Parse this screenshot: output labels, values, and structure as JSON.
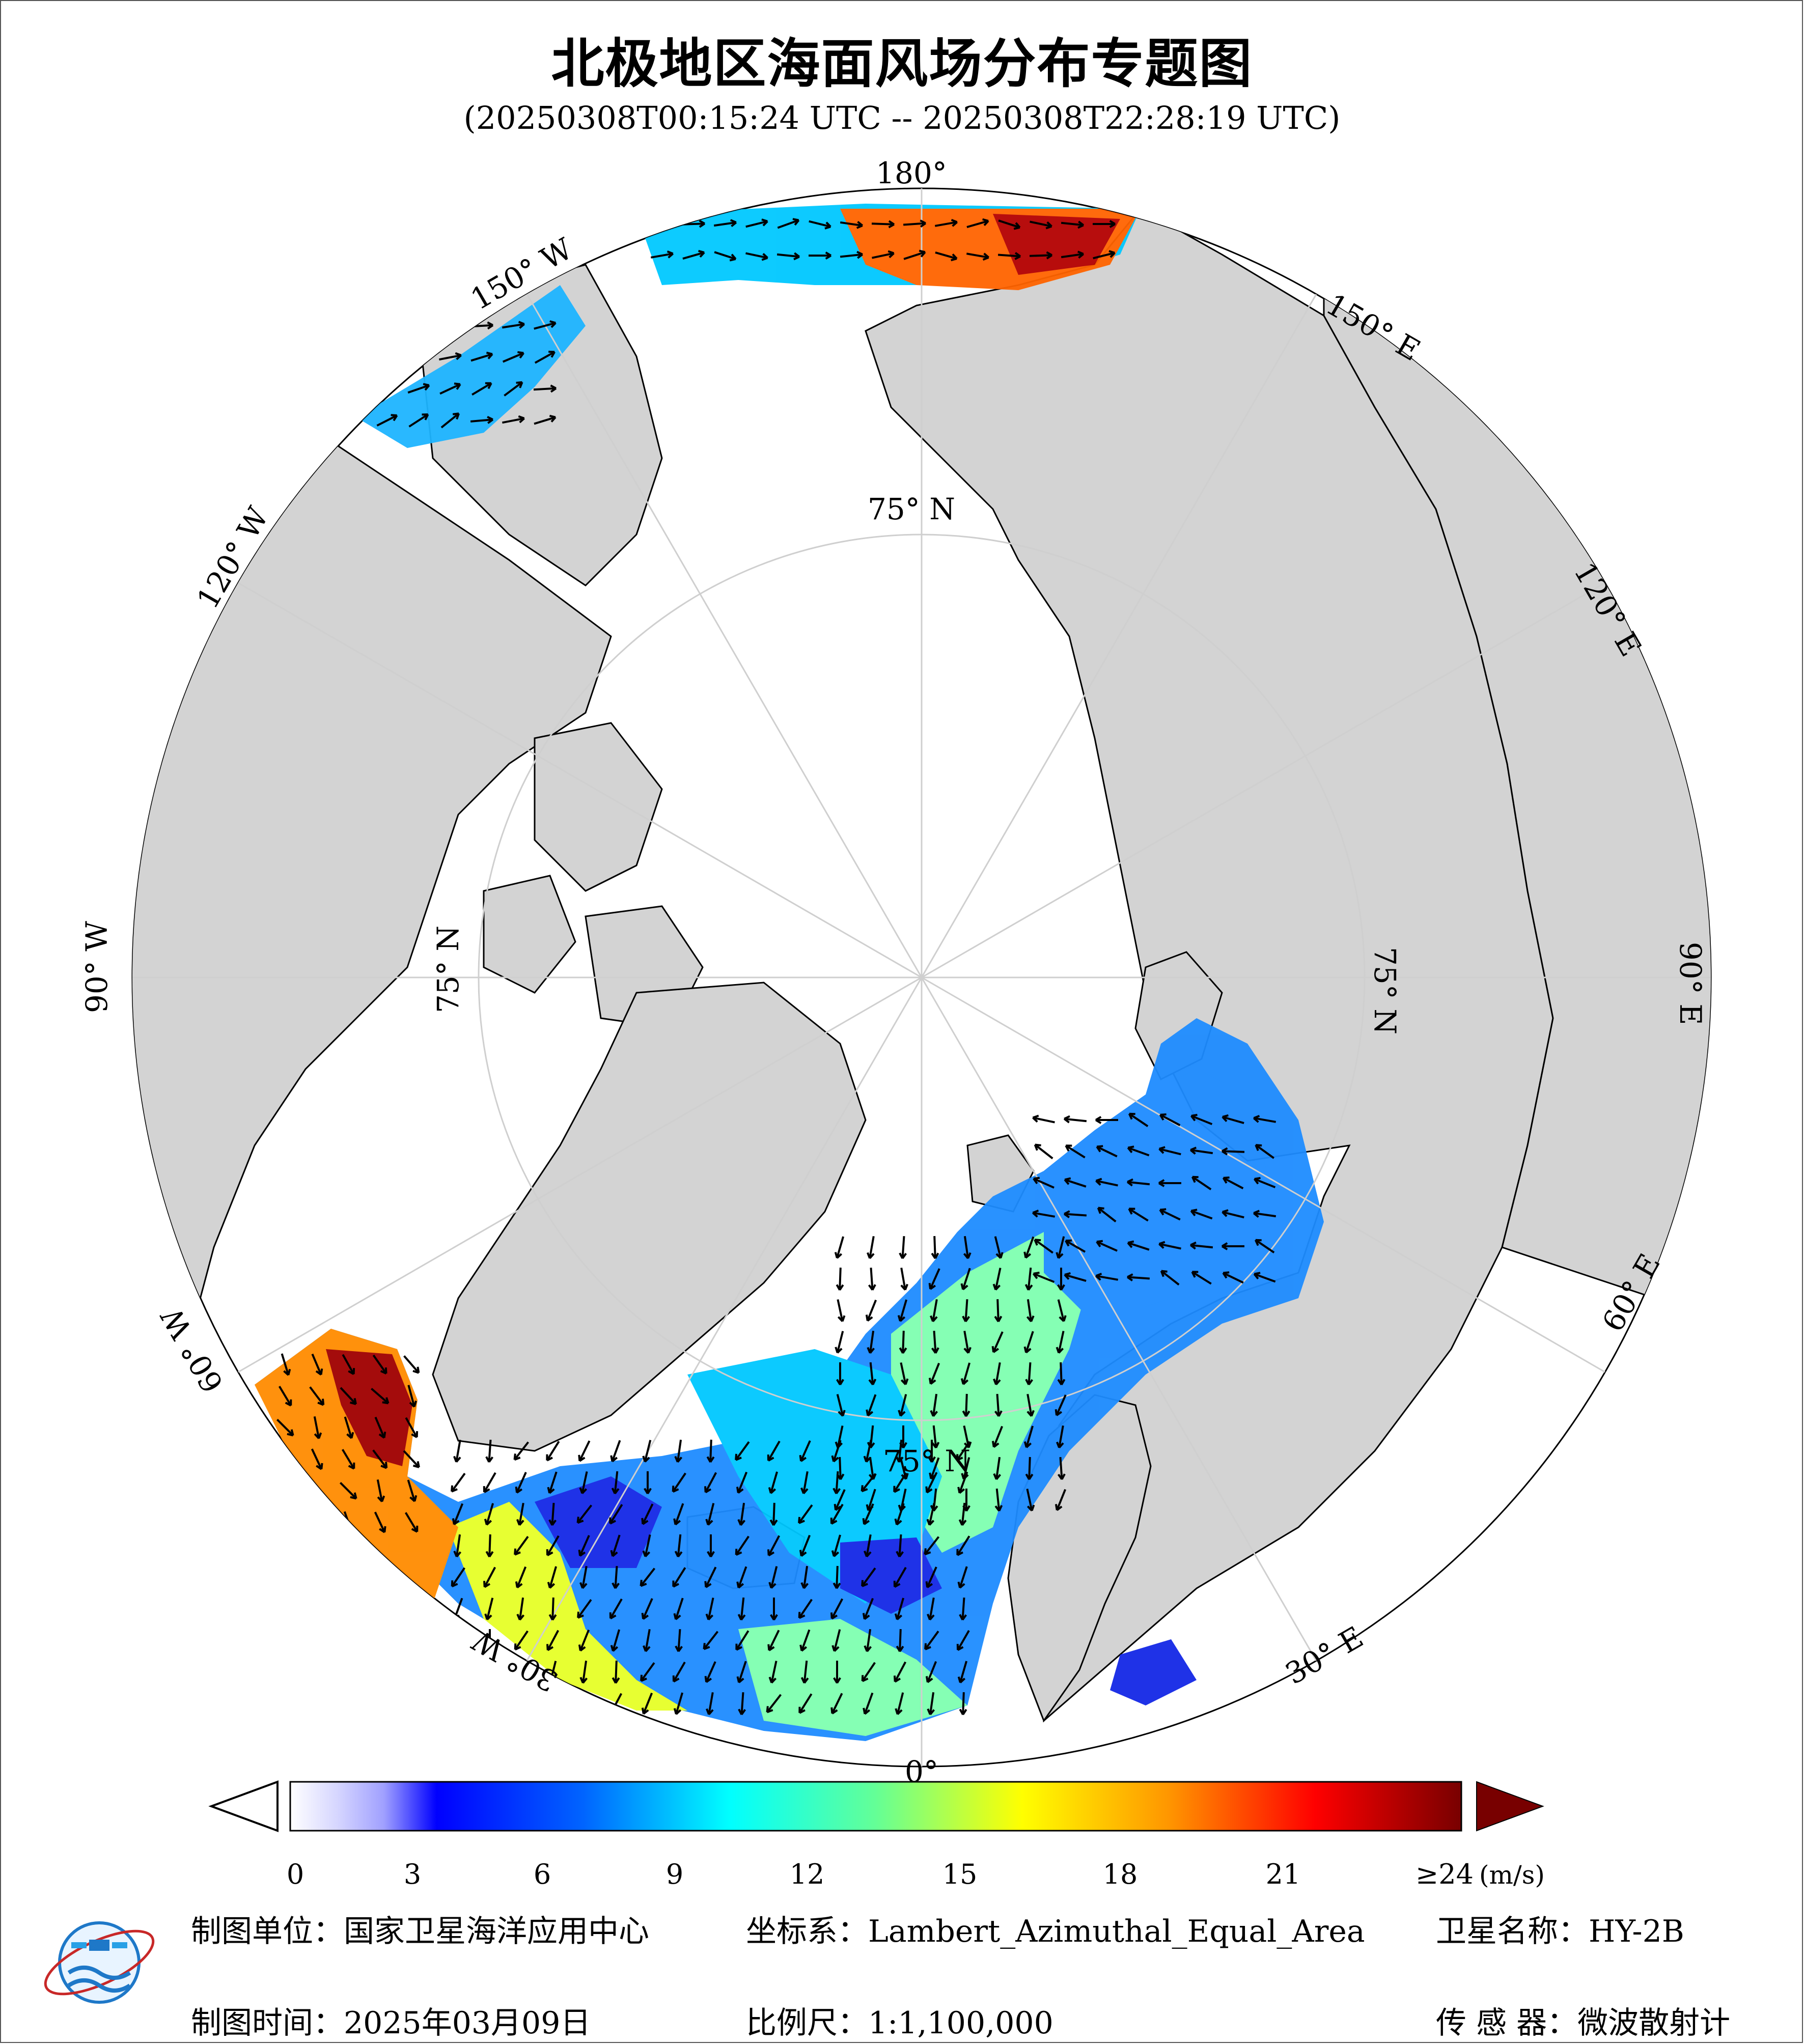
{
  "title": "北极地区海面风场分布专题图",
  "subtitle": "(20250308T00:15:24 UTC -- 20250308T22:28:19 UTC)",
  "map": {
    "projection": "Lambert_Azimuthal_Equal_Area",
    "center": "North Pole",
    "ocean_color": "#ffffff",
    "land_color": "#d3d3d3",
    "graticule_color": "#cfcfcf",
    "longitude_labels": [
      "180°",
      "150° E",
      "120° E",
      "90° E",
      "60° E",
      "30° E",
      "0°",
      "30° W",
      "60° W",
      "90° W",
      "120° W",
      "150° W"
    ],
    "latitude_labels": [
      "75° N",
      "75° N",
      "75° N",
      "75° N"
    ]
  },
  "colorbar": {
    "ticks": [
      "0",
      "3",
      "6",
      "9",
      "12",
      "15",
      "18",
      "21"
    ],
    "max_label": "≥24",
    "unit": "(m/s)",
    "colors": [
      "#ffffff",
      "#d6d6ff",
      "#a0a0ff",
      "#5050ff",
      "#0000ff",
      "#0064ff",
      "#00b4ff",
      "#00ffff",
      "#64ff96",
      "#c8ff32",
      "#ffff00",
      "#ffc800",
      "#ff6400",
      "#ff0000",
      "#c80000",
      "#780000"
    ]
  },
  "footer": {
    "unit_label": "制图单位：国家卫星海洋应用中心",
    "crs_label": "坐标系：Lambert_Azimuthal_Equal_Area",
    "satellite_label": "卫星名称：HY-2B",
    "date_label": "制图时间：2025年03月09日",
    "scale_label": "比例尺：1:1,100,000",
    "sensor_label": "传  感  器：微波散射计"
  }
}
